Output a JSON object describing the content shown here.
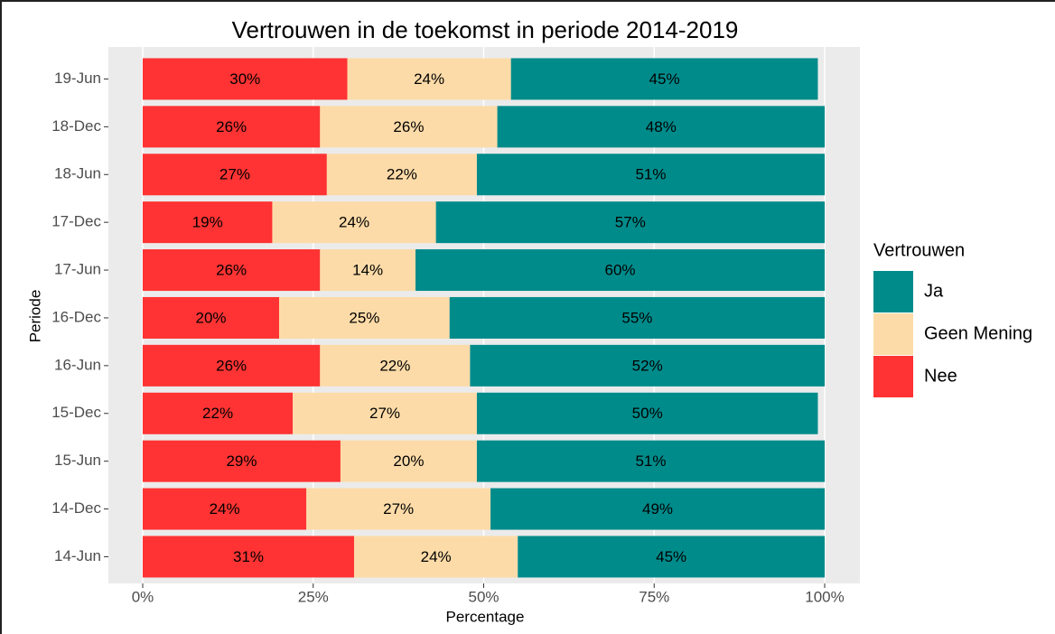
{
  "chart_data": {
    "type": "bar",
    "orientation": "horizontal",
    "stacked": true,
    "title": "Vertrouwen in de toekomst in periode 2014-2019",
    "x_label": "Percentage",
    "y_label": "Periode",
    "legend_title": "Vertrouwen",
    "legend_position": "right",
    "categories": [
      "19-Jun",
      "18-Dec",
      "18-Jun",
      "17-Dec",
      "17-Jun",
      "16-Dec",
      "16-Jun",
      "15-Dec",
      "15-Jun",
      "14-Dec",
      "14-Jun"
    ],
    "series": [
      {
        "name": "Nee",
        "color": "#ff3333",
        "values": [
          30,
          26,
          27,
          19,
          26,
          20,
          26,
          22,
          29,
          24,
          31
        ],
        "value_labels": [
          "30%",
          "26%",
          "27%",
          "19%",
          "26%",
          "20%",
          "26%",
          "22%",
          "29%",
          "24%",
          "31%"
        ]
      },
      {
        "name": "Geen Mening",
        "color": "#fddba8",
        "values": [
          24,
          26,
          22,
          24,
          14,
          25,
          22,
          27,
          20,
          27,
          24
        ],
        "value_labels": [
          "24%",
          "26%",
          "22%",
          "24%",
          "14%",
          "25%",
          "22%",
          "27%",
          "20%",
          "27%",
          "24%"
        ]
      },
      {
        "name": "Ja",
        "color": "#008b8b",
        "values": [
          45,
          48,
          51,
          57,
          60,
          55,
          52,
          50,
          51,
          49,
          45
        ],
        "value_labels": [
          "45%",
          "48%",
          "51%",
          "57%",
          "60%",
          "55%",
          "52%",
          "50%",
          "51%",
          "49%",
          "45%"
        ]
      }
    ],
    "xlim": [
      0,
      100
    ],
    "xticks": [
      {
        "value": 0,
        "label": "0%"
      },
      {
        "value": 25,
        "label": "25%"
      },
      {
        "value": 50,
        "label": "50%"
      },
      {
        "value": 75,
        "label": "75%"
      },
      {
        "value": 100,
        "label": "100%"
      }
    ],
    "grid": true
  }
}
